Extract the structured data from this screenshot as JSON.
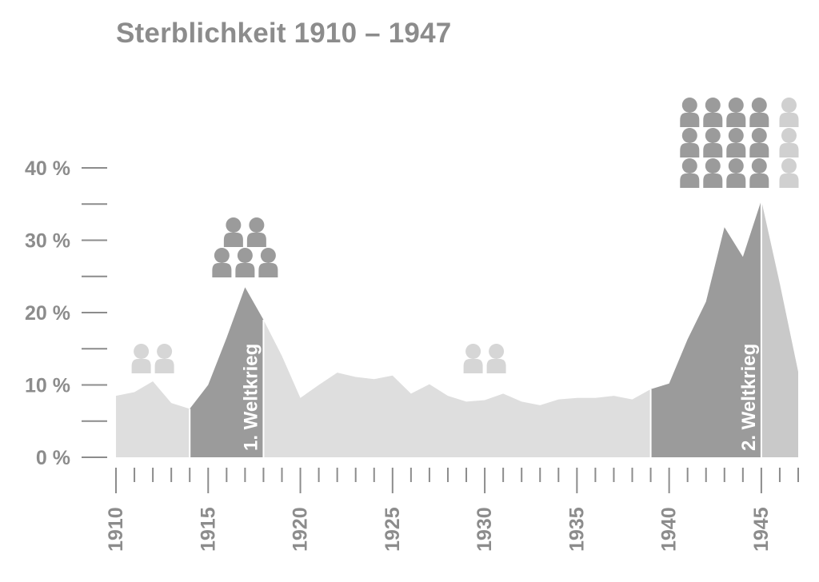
{
  "chart_data": {
    "type": "area",
    "title": "Sterblichkeit 1910 – 1947",
    "xlabel": "",
    "ylabel": "",
    "x": [
      1910,
      1911,
      1912,
      1913,
      1914,
      1915,
      1916,
      1917,
      1918,
      1919,
      1920,
      1921,
      1922,
      1923,
      1924,
      1925,
      1926,
      1927,
      1928,
      1929,
      1930,
      1931,
      1932,
      1933,
      1934,
      1935,
      1936,
      1937,
      1938,
      1939,
      1940,
      1941,
      1942,
      1943,
      1944,
      1945,
      1946,
      1947
    ],
    "y": [
      8.5,
      9.0,
      10.5,
      7.5,
      6.7,
      10.0,
      16.5,
      23.5,
      19.0,
      14.0,
      8.2,
      10.0,
      11.7,
      11.1,
      10.8,
      11.3,
      8.8,
      10.1,
      8.5,
      7.7,
      7.9,
      8.8,
      7.7,
      7.2,
      8.0,
      8.2,
      8.2,
      8.5,
      8.0,
      9.4,
      10.2,
      16.3,
      21.5,
      31.8,
      27.7,
      35.5,
      24.0,
      11.8
    ],
    "xlim": [
      1910,
      1947
    ],
    "ylim": [
      0,
      40
    ],
    "y_ticks": [
      "0 %",
      "10 %",
      "20 %",
      "30 %",
      "40 %"
    ],
    "x_ticks": [
      "1910",
      "1915",
      "1920",
      "1925",
      "1930",
      "1935",
      "1940",
      "1945"
    ],
    "highlight_periods": [
      {
        "label": "1. Weltkrieg",
        "start": 1914,
        "end": 1918,
        "color": "#9b9b9b"
      },
      {
        "label": "2. Weltkrieg",
        "start": 1939,
        "end": 1945,
        "color": "#9b9b9b"
      }
    ],
    "base_color": "#dedede",
    "post_war_color": "#c9c9c9",
    "person_icon_groups": [
      {
        "name": "pre-war",
        "year": 1912,
        "rows": [
          [
            2
          ]
        ],
        "color": "#d6d6d6"
      },
      {
        "name": "ww1",
        "year": 1917,
        "rows": [
          [
            2
          ],
          [
            3
          ]
        ],
        "color": "#9b9b9b"
      },
      {
        "name": "interwar",
        "year": 1930,
        "rows": [
          [
            2
          ]
        ],
        "color": "#d6d6d6"
      },
      {
        "name": "ww2",
        "year": 1943,
        "rows": [
          [
            4
          ],
          [
            4
          ],
          [
            4
          ]
        ],
        "color": "#9b9b9b"
      },
      {
        "name": "post-war",
        "year": 1946.5,
        "rows": [
          [
            1
          ],
          [
            1
          ],
          [
            1
          ]
        ],
        "color": "#d0d0d0"
      }
    ]
  }
}
